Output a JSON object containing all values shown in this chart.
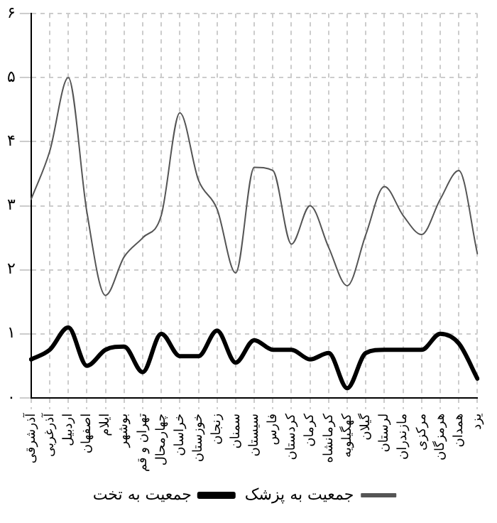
{
  "chart_data": {
    "type": "line",
    "categories": [
      "آذرشرقی",
      "آذرغربی",
      "اردبیل",
      "اصفهان",
      "ایلام",
      "بوشهر",
      "تهران و قم",
      "چهارمحال",
      "خراسان",
      "خوزستان",
      "زنجان",
      "سمنان",
      "سیستان",
      "فارس",
      "کردستان",
      "کرمان",
      "کرمانشاه",
      "کهگیلویه",
      "گیلان",
      "لرستان",
      "مازندران",
      "مرکزی",
      "هرمزگان",
      "همدان",
      "یزد"
    ],
    "series": [
      {
        "name": "جمعیت به پزشک",
        "color": "#555555",
        "values": [
          3.1,
          3.85,
          5.0,
          2.9,
          1.6,
          2.2,
          2.5,
          2.85,
          4.45,
          3.4,
          2.95,
          1.95,
          3.6,
          3.55,
          2.4,
          3.0,
          2.35,
          1.75,
          2.55,
          3.3,
          2.85,
          2.55,
          3.1,
          3.55,
          2.25
        ]
      },
      {
        "name": "جمعیت به تخت",
        "color": "#000000",
        "values": [
          0.6,
          0.75,
          1.1,
          0.5,
          0.75,
          0.8,
          0.4,
          1.0,
          0.65,
          0.65,
          1.05,
          0.55,
          0.9,
          0.75,
          0.75,
          0.6,
          0.7,
          0.15,
          0.7,
          0.75,
          0.75,
          0.75,
          1.0,
          0.85,
          0.3
        ]
      }
    ],
    "ylim": [
      0,
      6
    ],
    "yticks": [
      {
        "value": 0,
        "label": "۰"
      },
      {
        "value": 1,
        "label": "۱"
      },
      {
        "value": 2,
        "label": "۲"
      },
      {
        "value": 3,
        "label": "۳"
      },
      {
        "value": 4,
        "label": "۴"
      },
      {
        "value": 5,
        "label": "۵"
      },
      {
        "value": 6,
        "label": "۶"
      }
    ],
    "grid": true,
    "legend": "bottom",
    "marker": "none",
    "line_style": "solid"
  }
}
